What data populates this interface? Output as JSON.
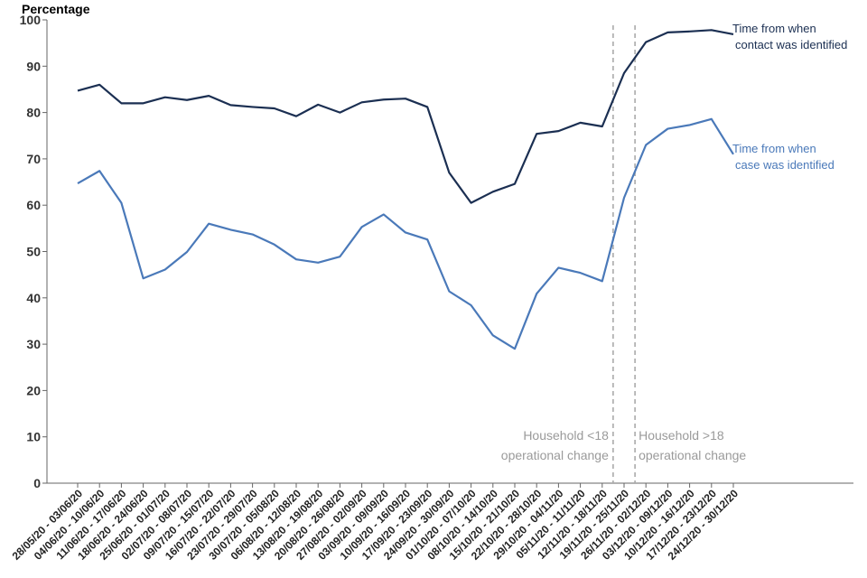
{
  "chart_data": {
    "type": "line",
    "ylabel": "Percentage",
    "ylim": [
      0,
      100
    ],
    "yticks": [
      0,
      10,
      20,
      30,
      40,
      50,
      60,
      70,
      80,
      90,
      100
    ],
    "grid": false,
    "categories": [
      "28/05/20 - 03/06/20",
      "04/06/20 - 10/06/20",
      "11/06/20 - 17/06/20",
      "18/06/20 - 24/06/20",
      "25/06/20 - 01/07/20",
      "02/07/20 - 08/07/20",
      "09/07/20 - 15/07/20",
      "16/07/20 - 22/07/20",
      "23/07/20 - 29/07/20",
      "30/07/20 - 05/08/20",
      "06/08/20 - 12/08/20",
      "13/08/20 - 19/08/20",
      "20/08/20 - 26/08/20",
      "27/08/20 - 02/09/20",
      "03/09/20 - 09/09/20",
      "10/09/20 - 16/09/20",
      "17/09/20 - 23/09/20",
      "24/09/20 - 30/09/20",
      "01/10/20 - 07/10/20",
      "08/10/20 - 14/10/20",
      "15/10/20 - 21/10/20",
      "22/10/20 - 28/10/20",
      "29/10/20 - 04/11/20",
      "05/11/20 - 11/11/20",
      "12/11/20 - 18/11/20",
      "19/11/20 - 25/11/20",
      "26/11/20 - 02/12/20",
      "03/12/20 - 09/12/20",
      "10/12/20 - 16/12/20",
      "17/12/20 - 23/12/20",
      "24/12/20 - 30/12/20"
    ],
    "series": [
      {
        "name": "Time from when contact was identified",
        "label_lines": [
          "Time from when",
          "contact was identified"
        ],
        "color": "#1b2f52",
        "values": [
          84.7,
          86.0,
          82.0,
          82.0,
          83.3,
          82.7,
          83.6,
          81.6,
          81.2,
          80.9,
          79.2,
          81.7,
          80.0,
          82.2,
          82.8,
          83.0,
          81.2,
          67.0,
          60.5,
          62.9,
          64.6,
          75.4,
          76.0,
          77.8,
          77.0,
          88.5,
          95.2,
          97.3,
          97.5,
          97.8,
          96.9
        ]
      },
      {
        "name": "Time from when case was identified",
        "label_lines": [
          "Time from when",
          "case was identified"
        ],
        "color": "#4a79b9",
        "values": [
          64.7,
          67.4,
          60.5,
          44.2,
          46.1,
          49.9,
          56.0,
          54.7,
          53.7,
          51.5,
          48.3,
          47.6,
          48.9,
          55.3,
          58.0,
          54.1,
          52.6,
          41.4,
          38.4,
          31.9,
          29.0,
          40.9,
          46.5,
          45.4,
          43.6,
          61.6,
          73.0,
          76.5,
          77.3,
          78.6,
          71.0
        ]
      }
    ],
    "annotations": [
      {
        "lines": [
          "Household <18",
          "operational change"
        ],
        "after_category": "12/11/20 - 18/11/20"
      },
      {
        "lines": [
          "Household >18",
          "operational change"
        ],
        "after_category": "19/11/20 - 25/11/20"
      }
    ]
  }
}
